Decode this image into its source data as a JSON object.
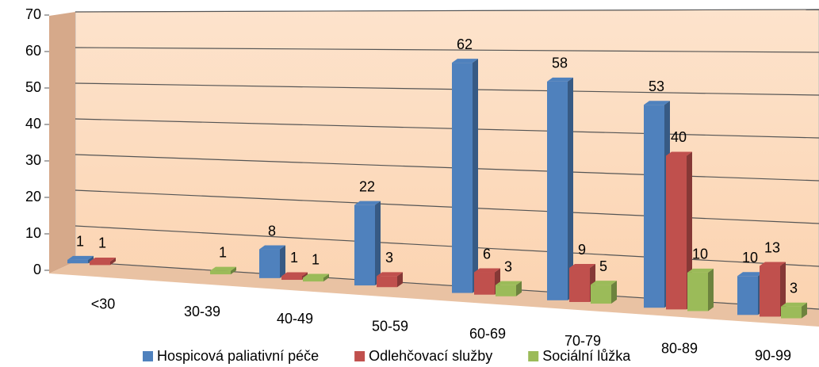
{
  "chart_data": {
    "type": "bar3d",
    "categories": [
      "<30",
      "30-39",
      "40-49",
      "50-59",
      "60-69",
      "70-79",
      "80-89",
      "90-99"
    ],
    "series": [
      {
        "name": "Hospicová paliativní péče",
        "color": "#4f81bd",
        "values": [
          1,
          null,
          8,
          22,
          62,
          58,
          53,
          10
        ]
      },
      {
        "name": "Odlehčovací služby",
        "color": "#c0504d",
        "values": [
          1,
          null,
          1,
          3,
          6,
          9,
          40,
          13
        ]
      },
      {
        "name": "Sociální lůžka",
        "color": "#9bbb59",
        "values": [
          null,
          1,
          1,
          null,
          3,
          5,
          10,
          3
        ]
      }
    ],
    "ylim": [
      0,
      70
    ],
    "yticks": [
      0,
      10,
      20,
      30,
      40,
      50,
      60,
      70
    ],
    "grid": true,
    "legend": "bottom"
  }
}
